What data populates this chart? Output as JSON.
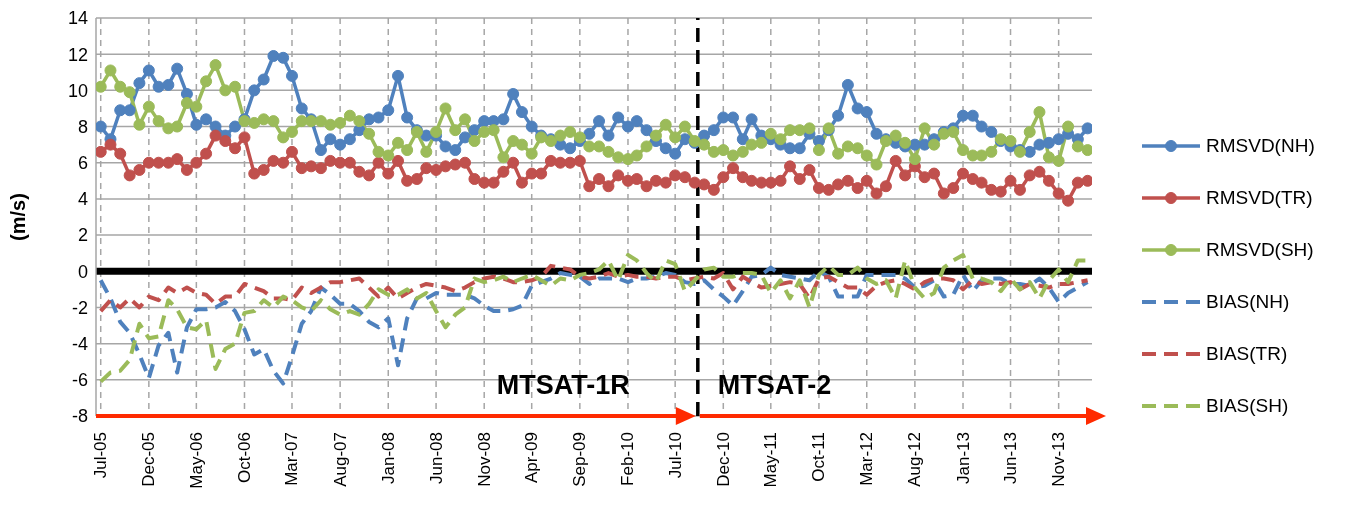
{
  "chart_data": {
    "type": "line",
    "ylabel": "(m/s)",
    "x": [
      "2005-07",
      "2005-08",
      "2005-09",
      "2005-10",
      "2005-11",
      "2005-12",
      "2006-01",
      "2006-02",
      "2006-03",
      "2006-04",
      "2006-05",
      "2006-06",
      "2006-07",
      "2006-08",
      "2006-09",
      "2006-10",
      "2006-11",
      "2006-12",
      "2007-01",
      "2007-02",
      "2007-03",
      "2007-04",
      "2007-05",
      "2007-06",
      "2007-07",
      "2007-08",
      "2007-09",
      "2007-10",
      "2007-11",
      "2007-12",
      "2008-01",
      "2008-02",
      "2008-03",
      "2008-04",
      "2008-05",
      "2008-06",
      "2008-07",
      "2008-08",
      "2008-09",
      "2008-10",
      "2008-11",
      "2008-12",
      "2009-01",
      "2009-02",
      "2009-03",
      "2009-04",
      "2009-05",
      "2009-06",
      "2009-07",
      "2009-08",
      "2009-09",
      "2009-10",
      "2009-11",
      "2009-12",
      "2010-01",
      "2010-02",
      "2010-03",
      "2010-04",
      "2010-05",
      "2010-06",
      "2010-07",
      "2010-08",
      "2010-09",
      "2010-10",
      "2010-11",
      "2010-12",
      "2011-01",
      "2011-02",
      "2011-03",
      "2011-04",
      "2011-05",
      "2011-06",
      "2011-07",
      "2011-08",
      "2011-09",
      "2011-10",
      "2011-11",
      "2011-12",
      "2012-01",
      "2012-02",
      "2012-03",
      "2012-04",
      "2012-05",
      "2012-06",
      "2012-07",
      "2012-08",
      "2012-09",
      "2012-10",
      "2012-11",
      "2012-12",
      "2013-01",
      "2013-02",
      "2013-03",
      "2013-04",
      "2013-05",
      "2013-06",
      "2013-07",
      "2013-08",
      "2013-09",
      "2013-10",
      "2013-11",
      "2013-12",
      "2014-01",
      "2014-02"
    ],
    "xlim": [
      "2005-06-16",
      "2014-02-15"
    ],
    "xticks": [
      {
        "value": "2005-07",
        "label": "Jul-05"
      },
      {
        "value": "2005-12",
        "label": "Dec-05"
      },
      {
        "value": "2006-05",
        "label": "May-06"
      },
      {
        "value": "2006-10",
        "label": "Oct-06"
      },
      {
        "value": "2007-03",
        "label": "Mar-07"
      },
      {
        "value": "2007-08",
        "label": "Aug-07"
      },
      {
        "value": "2008-01",
        "label": "Jan-08"
      },
      {
        "value": "2008-06",
        "label": "Jun-08"
      },
      {
        "value": "2008-11",
        "label": "Nov-08"
      },
      {
        "value": "2009-04",
        "label": "Apr-09"
      },
      {
        "value": "2009-09",
        "label": "Sep-09"
      },
      {
        "value": "2010-02",
        "label": "Feb-10"
      },
      {
        "value": "2010-07",
        "label": "Jul-10"
      },
      {
        "value": "2010-12",
        "label": "Dec-10"
      },
      {
        "value": "2011-05",
        "label": "May-11"
      },
      {
        "value": "2011-10",
        "label": "Oct-11"
      },
      {
        "value": "2012-03",
        "label": "Mar-12"
      },
      {
        "value": "2012-08",
        "label": "Aug-12"
      },
      {
        "value": "2013-01",
        "label": "Jan-13"
      },
      {
        "value": "2013-06",
        "label": "Jun-13"
      },
      {
        "value": "2013-11",
        "label": "Nov-13"
      }
    ],
    "ylim": [
      -8,
      14
    ],
    "yticks": [
      -8,
      -6,
      -4,
      -2,
      0,
      2,
      4,
      6,
      8,
      10,
      12,
      14
    ],
    "grid": true,
    "legend": "right",
    "series": [
      {
        "name": "RMSVD(NH)",
        "color": "#4f81bd",
        "marker": "circle",
        "line_style": "solid",
        "values": [
          8.0,
          7.3,
          8.9,
          8.9,
          10.4,
          11.1,
          10.2,
          10.3,
          11.2,
          9.8,
          8.1,
          8.4,
          8.0,
          7.5,
          8.0,
          8.4,
          10.0,
          10.6,
          11.9,
          11.8,
          10.8,
          9.0,
          8.4,
          6.7,
          7.3,
          7.0,
          7.3,
          7.8,
          8.4,
          8.5,
          8.9,
          10.8,
          8.5,
          7.8,
          7.5,
          7.5,
          6.9,
          6.7,
          7.4,
          7.8,
          8.3,
          8.3,
          8.4,
          9.8,
          8.8,
          8.0,
          7.5,
          7.3,
          7.0,
          6.8,
          7.2,
          7.6,
          8.3,
          7.5,
          8.5,
          8.0,
          8.3,
          7.8,
          7.2,
          6.8,
          6.5,
          7.3,
          7.1,
          7.5,
          7.8,
          8.5,
          8.5,
          7.3,
          8.4,
          7.5,
          7.3,
          7.0,
          6.8,
          6.8,
          7.6,
          7.2,
          7.8,
          8.6,
          10.3,
          9.0,
          8.8,
          7.6,
          7.3,
          7.1,
          6.9,
          7.0,
          7.0,
          7.3,
          7.7,
          7.9,
          8.6,
          8.6,
          8.0,
          7.7,
          7.2,
          6.9,
          6.7,
          6.6,
          7.0,
          7.1,
          7.3,
          7.6,
          7.3,
          7.9
        ]
      },
      {
        "name": "RMSVD(TR)",
        "color": "#c0504d",
        "marker": "circle",
        "line_style": "solid",
        "values": [
          6.6,
          7.0,
          6.5,
          5.3,
          5.6,
          6.0,
          6.0,
          6.0,
          6.2,
          5.6,
          6.0,
          6.5,
          7.5,
          7.2,
          6.8,
          7.4,
          5.4,
          5.6,
          6.1,
          6.0,
          6.6,
          5.7,
          5.8,
          5.7,
          6.1,
          6.0,
          6.0,
          5.5,
          5.3,
          6.0,
          5.4,
          6.1,
          5.0,
          5.1,
          5.7,
          5.6,
          5.8,
          5.9,
          6.0,
          5.1,
          4.9,
          4.9,
          5.5,
          6.0,
          4.9,
          5.4,
          5.4,
          6.1,
          6.0,
          6.0,
          6.1,
          4.7,
          5.1,
          4.7,
          5.3,
          5.0,
          5.1,
          4.7,
          5.0,
          4.9,
          5.3,
          5.2,
          4.9,
          4.8,
          4.5,
          5.2,
          5.7,
          5.2,
          5.0,
          4.9,
          4.9,
          5.0,
          5.8,
          5.1,
          5.6,
          4.6,
          4.5,
          4.8,
          5.0,
          4.6,
          5.0,
          4.3,
          4.7,
          6.1,
          5.3,
          5.8,
          5.2,
          5.4,
          4.3,
          4.6,
          5.4,
          5.1,
          4.9,
          4.5,
          4.4,
          5.0,
          4.5,
          5.3,
          5.5,
          5.0,
          4.3,
          3.9,
          4.9,
          5.0
        ]
      },
      {
        "name": "RMSVD(SH)",
        "color": "#9bbb59",
        "marker": "circle",
        "line_style": "solid",
        "values": [
          10.2,
          11.1,
          10.2,
          9.9,
          8.1,
          9.1,
          8.3,
          7.9,
          8.0,
          9.3,
          9.1,
          10.5,
          11.4,
          10.0,
          10.2,
          8.3,
          8.2,
          8.4,
          8.3,
          7.4,
          7.7,
          8.3,
          8.3,
          8.3,
          8.1,
          8.2,
          8.6,
          8.3,
          7.6,
          6.6,
          6.4,
          7.1,
          6.7,
          7.7,
          6.6,
          7.7,
          9.0,
          7.8,
          8.4,
          7.2,
          7.7,
          7.8,
          6.3,
          7.2,
          7.0,
          6.5,
          7.4,
          7.2,
          7.5,
          7.7,
          7.4,
          6.9,
          6.9,
          6.6,
          6.3,
          6.2,
          6.4,
          6.9,
          7.5,
          8.1,
          7.4,
          8.0,
          7.2,
          7.0,
          6.6,
          6.7,
          6.4,
          6.6,
          7.0,
          7.1,
          7.6,
          7.3,
          7.8,
          7.8,
          7.9,
          6.7,
          7.9,
          6.5,
          6.9,
          6.8,
          6.4,
          5.9,
          7.2,
          7.5,
          7.1,
          6.2,
          7.9,
          7.0,
          7.6,
          7.7,
          6.7,
          6.4,
          6.4,
          6.6,
          7.3,
          7.2,
          6.6,
          7.7,
          8.8,
          6.3,
          6.1,
          8.0,
          6.9,
          6.7
        ]
      },
      {
        "name": "BIAS(NH)",
        "color": "#4f81bd",
        "marker": "none",
        "line_style": "dashed",
        "values": [
          -0.5,
          -1.5,
          -2.8,
          -3.4,
          -4.6,
          -5.9,
          -4.1,
          -3.4,
          -5.6,
          -3.1,
          -2.1,
          -2.1,
          -2.0,
          -1.7,
          -2.2,
          -3.2,
          -4.6,
          -4.3,
          -5.5,
          -6.2,
          -4.7,
          -2.9,
          -2.2,
          -0.9,
          -1.3,
          -1.8,
          -1.8,
          -2.2,
          -2.8,
          -3.1,
          -2.6,
          -5.2,
          -2.6,
          -1.5,
          -1.5,
          -1.2,
          -1.3,
          -1.3,
          -1.3,
          -1.5,
          -1.9,
          -2.2,
          -2.2,
          -2.1,
          -1.9,
          -0.8,
          -0.6,
          -0.4,
          -0.1,
          -0.2,
          -0.3,
          -0.7,
          -0.4,
          -0.4,
          -0.4,
          -0.6,
          -0.4,
          -0.4,
          -0.3,
          -0.1,
          -0.2,
          -0.6,
          -0.7,
          -0.5,
          -1.0,
          -1.4,
          -1.9,
          -1.1,
          -0.3,
          -0.2,
          0.2,
          -0.2,
          -0.3,
          -0.4,
          -0.5,
          0.0,
          -0.3,
          -1.4,
          -1.4,
          -1.4,
          -0.2,
          -0.2,
          -0.2,
          -0.2,
          -0.4,
          -0.9,
          -0.8,
          -0.5,
          -1.4,
          -1.3,
          -0.2,
          -1.1,
          -0.5,
          -0.4,
          -0.4,
          -0.7,
          -0.7,
          -0.8,
          -0.4,
          -0.9,
          -1.7,
          -1.2,
          -0.9,
          -0.6
        ]
      },
      {
        "name": "BIAS(TR)",
        "color": "#c0504d",
        "marker": "none",
        "line_style": "dashed",
        "values": [
          -2.2,
          -1.6,
          -2.0,
          -1.5,
          -2.0,
          -1.4,
          -1.6,
          -0.9,
          -1.2,
          -0.9,
          -1.2,
          -1.3,
          -1.8,
          -1.4,
          -1.4,
          -0.7,
          -0.9,
          -1.1,
          -1.5,
          -1.5,
          -1.6,
          -0.9,
          -1.2,
          -0.9,
          -0.6,
          -0.6,
          -0.5,
          -0.4,
          -0.9,
          -1.4,
          -0.9,
          -1.5,
          -1.2,
          -0.9,
          -0.7,
          -0.8,
          -0.9,
          -1.1,
          -0.9,
          -0.6,
          -0.4,
          -0.3,
          -0.4,
          -0.6,
          -0.6,
          -0.5,
          -0.3,
          0.3,
          0.2,
          0.1,
          -0.3,
          -0.4,
          -0.3,
          -0.1,
          -0.3,
          -0.2,
          -0.3,
          -0.3,
          -0.4,
          -0.3,
          -0.3,
          -0.5,
          -0.4,
          -0.3,
          -0.4,
          -0.1,
          -1.0,
          -0.3,
          -0.6,
          -0.9,
          -0.8,
          -0.7,
          -0.6,
          -0.7,
          -1.5,
          -0.4,
          -0.3,
          -0.6,
          -0.9,
          -0.9,
          -1.3,
          -0.8,
          -0.6,
          -0.5,
          -0.7,
          -1.0,
          -0.6,
          -0.4,
          -0.4,
          -0.5,
          -1.0,
          -0.5,
          -0.7,
          -0.6,
          -0.7,
          -0.6,
          -1.0,
          -0.7,
          -0.8,
          -0.9,
          -0.7,
          -0.7,
          -0.6,
          -0.5
        ]
      },
      {
        "name": "BIAS(SH)",
        "color": "#9bbb59",
        "marker": "none",
        "line_style": "dashed",
        "values": [
          -6.1,
          -5.6,
          -5.5,
          -4.9,
          -2.9,
          -3.7,
          -3.6,
          -1.6,
          -2.1,
          -3.1,
          -3.2,
          -2.7,
          -5.4,
          -4.3,
          -4.0,
          -2.3,
          -2.2,
          -1.6,
          -2.0,
          -1.4,
          -1.6,
          -2.0,
          -2.2,
          -1.6,
          -2.1,
          -2.4,
          -2.2,
          -2.4,
          -1.8,
          -1.0,
          -1.3,
          -1.3,
          -1.0,
          -1.5,
          -1.2,
          -2.2,
          -3.1,
          -2.4,
          -2.0,
          -0.4,
          -0.6,
          -0.5,
          -0.3,
          -0.6,
          -0.4,
          -0.2,
          -0.5,
          -0.8,
          -0.4,
          -0.5,
          -0.2,
          -0.1,
          0.1,
          0.6,
          -0.5,
          0.9,
          0.6,
          -0.1,
          -0.6,
          0.6,
          0.4,
          -1.1,
          -0.5,
          0.1,
          0.2,
          -0.3,
          -0.3,
          -0.1,
          -0.1,
          -0.2,
          -1.2,
          -0.5,
          -1.5,
          -0.5,
          -2.0,
          -0.2,
          0.3,
          -0.2,
          -0.2,
          0.2,
          -0.4,
          -0.7,
          -0.5,
          -1.5,
          0.6,
          -0.9,
          -1.5,
          -1.2,
          0.2,
          0.6,
          0.9,
          -0.4,
          -0.4,
          -0.6,
          -1.1,
          -0.4,
          -1.0,
          -0.6,
          -1.5,
          -0.5,
          0.1,
          -0.6,
          0.6,
          0.6
        ]
      }
    ],
    "ref_lines": [
      {
        "axis": "x",
        "value": "2010-09-11",
        "color": "#000000",
        "line_style": "dashed"
      },
      {
        "axis": "y",
        "value": 0,
        "color": "#000000",
        "line_style": "solid"
      }
    ],
    "annotations": [
      "MTSAT-1R",
      "MTSAT-2"
    ]
  }
}
